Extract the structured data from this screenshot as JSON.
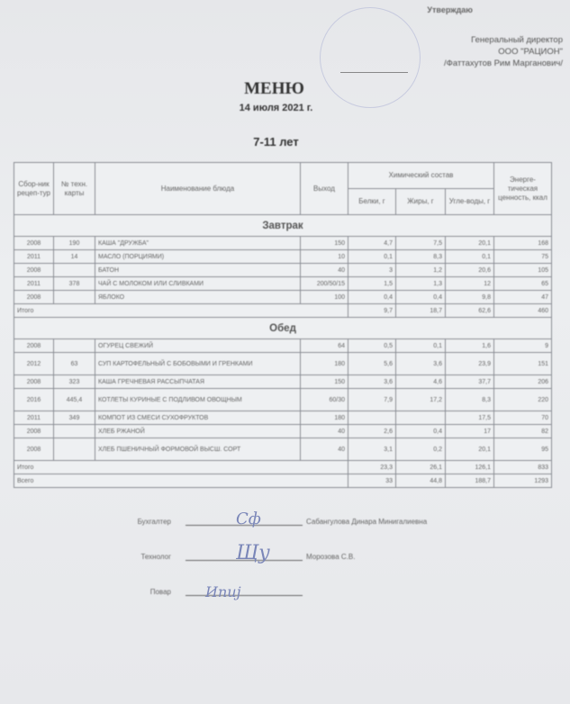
{
  "approval": {
    "label": "Утверждаю",
    "position": "Генеральный директор",
    "company": "ООО \"РАЦИОН\"",
    "name": "/Фаттахутов Рим Марганович/"
  },
  "title": "МЕНЮ",
  "date": "14 июля 2021 г.",
  "age_group": "7-11 лет",
  "table": {
    "headers": {
      "collection": "Сбор-ник рецеп-тур",
      "tech_card": "№ техн. карты",
      "dish": "Наименование блюда",
      "output": "Выход",
      "chem": "Химический состав",
      "protein": "Белки, г",
      "fat": "Жиры, г",
      "carbs": "Угле-воды, г",
      "energy": "Энерге-тическая ценность, ккал"
    },
    "breakfast": {
      "title": "Завтрак",
      "rows": [
        [
          "2008",
          "190",
          "КАША \"ДРУЖБА\"",
          "150",
          "4,7",
          "7,5",
          "20,1",
          "168"
        ],
        [
          "2011",
          "14",
          "МАСЛО (ПОРЦИЯМИ)",
          "10",
          "0,1",
          "8,3",
          "0,1",
          "75"
        ],
        [
          "2008",
          "",
          "БАТОН",
          "40",
          "3",
          "1,2",
          "20,6",
          "105"
        ],
        [
          "2011",
          "378",
          "ЧАЙ С МОЛОКОМ ИЛИ СЛИВКАМИ",
          "200/50/15",
          "1,5",
          "1,3",
          "12",
          "65"
        ],
        [
          "2008",
          "",
          "ЯБЛОКО",
          "100",
          "0,4",
          "0,4",
          "9,8",
          "47"
        ]
      ],
      "total": {
        "label": "Итого",
        "values": [
          "9,7",
          "18,7",
          "62,6",
          "460"
        ]
      }
    },
    "lunch": {
      "title": "Обед",
      "rows": [
        [
          "2008",
          "",
          "ОГУРЕЦ СВЕЖИЙ",
          "64",
          "0,5",
          "0,1",
          "1,6",
          "9"
        ],
        [
          "2012",
          "63",
          "СУП КАРТОФЕЛЬНЫЙ С БОБОВЫМИ И ГРЕНКАМИ",
          "180",
          "5,6",
          "3,6",
          "23,9",
          "151"
        ],
        [
          "2008",
          "323",
          "КАША ГРЕЧНЕВАЯ РАССЫПЧАТАЯ",
          "150",
          "3,6",
          "4,6",
          "37,7",
          "206"
        ],
        [
          "2016",
          "445,4",
          "КОТЛЕТЫ КУРИНЫЕ С ПОДЛИВОМ ОВОЩНЫМ",
          "60/30",
          "7,9",
          "17,2",
          "8,3",
          "220"
        ],
        [
          "2011",
          "349",
          "КОМПОТ ИЗ СМЕСИ СУХОФРУКТОВ",
          "180",
          "",
          "",
          "17,5",
          "70"
        ],
        [
          "2008",
          "",
          "ХЛЕБ РЖАНОЙ",
          "40",
          "2,6",
          "0,4",
          "17",
          "82"
        ],
        [
          "2008",
          "",
          "ХЛЕБ ПШЕНИЧНЫЙ ФОРМОВОЙ ВЫСШ. СОРТ",
          "40",
          "3,1",
          "0,2",
          "20,1",
          "95"
        ]
      ],
      "total": {
        "label": "Итого",
        "values": [
          "23,3",
          "26,1",
          "126,1",
          "833"
        ]
      }
    },
    "grand_total": {
      "label": "Всего",
      "values": [
        "33",
        "44,8",
        "188,7",
        "1293"
      ]
    }
  },
  "signatures": [
    {
      "role": "Бухгалтер",
      "name": "Сабангулова Динара Минигалиевна"
    },
    {
      "role": "Технолог",
      "name": "Морозова С.В."
    },
    {
      "role": "Повар",
      "name": ""
    }
  ]
}
